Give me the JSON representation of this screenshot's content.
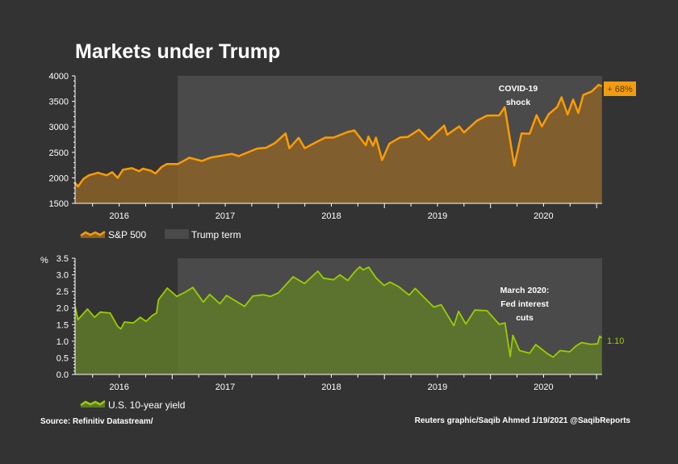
{
  "title": "Markets under Trump",
  "source": "Source: Refinitiv Datastream/",
  "credit": "Reuters graphic/Saqib Ahmed 1/19/2021 @SaqibReports",
  "colors": {
    "background": "#333333",
    "trump_term": "#4a4a4a",
    "sp500": "#ff9c00",
    "sp500_fill": "#8a6228",
    "yield": "#9acd00",
    "yield_fill": "#5f7a2a"
  },
  "chart_data": [
    {
      "type": "area",
      "series": [
        {
          "name": "S&P 500",
          "points": [
            [
              "2016-02-01",
              1900
            ],
            [
              "2016-02-11",
              1830
            ],
            [
              "2016-03-01",
              1980
            ],
            [
              "2016-03-20",
              2050
            ],
            [
              "2016-04-20",
              2100
            ],
            [
              "2016-05-20",
              2050
            ],
            [
              "2016-06-08",
              2110
            ],
            [
              "2016-06-27",
              2000
            ],
            [
              "2016-07-15",
              2160
            ],
            [
              "2016-08-15",
              2190
            ],
            [
              "2016-09-09",
              2130
            ],
            [
              "2016-09-22",
              2180
            ],
            [
              "2016-10-20",
              2140
            ],
            [
              "2016-11-04",
              2085
            ],
            [
              "2016-11-25",
              2210
            ],
            [
              "2016-12-13",
              2270
            ],
            [
              "2017-01-20",
              2270
            ],
            [
              "2017-02-15",
              2350
            ],
            [
              "2017-03-01",
              2395
            ],
            [
              "2017-04-13",
              2330
            ],
            [
              "2017-05-15",
              2400
            ],
            [
              "2017-06-15",
              2430
            ],
            [
              "2017-07-25",
              2470
            ],
            [
              "2017-08-18",
              2425
            ],
            [
              "2017-09-20",
              2505
            ],
            [
              "2017-10-20",
              2575
            ],
            [
              "2017-11-20",
              2590
            ],
            [
              "2017-12-20",
              2680
            ],
            [
              "2018-01-26",
              2872
            ],
            [
              "2018-02-08",
              2580
            ],
            [
              "2018-03-12",
              2785
            ],
            [
              "2018-04-02",
              2580
            ],
            [
              "2018-05-15",
              2710
            ],
            [
              "2018-06-12",
              2790
            ],
            [
              "2018-07-10",
              2790
            ],
            [
              "2018-08-28",
              2900
            ],
            [
              "2018-09-20",
              2930
            ],
            [
              "2018-10-29",
              2640
            ],
            [
              "2018-11-07",
              2810
            ],
            [
              "2018-11-23",
              2630
            ],
            [
              "2018-12-03",
              2790
            ],
            [
              "2018-12-24",
              2350
            ],
            [
              "2019-01-18",
              2670
            ],
            [
              "2019-02-25",
              2795
            ],
            [
              "2019-03-22",
              2800
            ],
            [
              "2019-04-30",
              2945
            ],
            [
              "2019-06-03",
              2745
            ],
            [
              "2019-07-26",
              3025
            ],
            [
              "2019-08-05",
              2845
            ],
            [
              "2019-09-15",
              3010
            ],
            [
              "2019-10-02",
              2890
            ],
            [
              "2019-11-15",
              3120
            ],
            [
              "2019-12-20",
              3220
            ],
            [
              "2020-01-31",
              3225
            ],
            [
              "2020-02-19",
              3386
            ],
            [
              "2020-03-23",
              2237
            ],
            [
              "2020-04-17",
              2870
            ],
            [
              "2020-05-15",
              2865
            ],
            [
              "2020-06-08",
              3230
            ],
            [
              "2020-06-26",
              3010
            ],
            [
              "2020-07-20",
              3250
            ],
            [
              "2020-08-18",
              3390
            ],
            [
              "2020-09-02",
              3580
            ],
            [
              "2020-09-23",
              3240
            ],
            [
              "2020-10-12",
              3535
            ],
            [
              "2020-10-30",
              3270
            ],
            [
              "2020-11-16",
              3625
            ],
            [
              "2020-12-15",
              3695
            ],
            [
              "2021-01-08",
              3824
            ],
            [
              "2021-01-19",
              3798
            ]
          ]
        }
      ],
      "ylim": [
        1500,
        4000
      ],
      "yticks": [
        1500,
        2000,
        2500,
        3000,
        3500,
        4000
      ],
      "xlim": [
        "2016-02-01",
        "2021-01-20"
      ],
      "xtick_labels": [
        "2016",
        "2017",
        "2018",
        "2019",
        "2020"
      ],
      "shaded_range": {
        "name": "Trump term",
        "from": "2017-01-20",
        "to": "2021-01-20"
      },
      "annotations": {
        "covid_line1": "COVID-19",
        "covid_line2": "shock",
        "end_label": "+ 68%"
      },
      "legend": {
        "placement": "bottom-left",
        "items": [
          "S&P 500",
          "Trump term"
        ]
      }
    },
    {
      "type": "area",
      "ylabel": "%",
      "series": [
        {
          "name": "U.S. 10-year yield",
          "points": [
            [
              "2016-02-01",
              2.05
            ],
            [
              "2016-02-11",
              1.65
            ],
            [
              "2016-03-15",
              1.97
            ],
            [
              "2016-04-08",
              1.72
            ],
            [
              "2016-04-28",
              1.88
            ],
            [
              "2016-06-01",
              1.85
            ],
            [
              "2016-06-27",
              1.45
            ],
            [
              "2016-07-08",
              1.37
            ],
            [
              "2016-07-20",
              1.58
            ],
            [
              "2016-08-20",
              1.55
            ],
            [
              "2016-09-13",
              1.72
            ],
            [
              "2016-10-03",
              1.6
            ],
            [
              "2016-10-25",
              1.78
            ],
            [
              "2016-11-08",
              1.85
            ],
            [
              "2016-11-15",
              2.25
            ],
            [
              "2016-12-15",
              2.6
            ],
            [
              "2017-01-17",
              2.35
            ],
            [
              "2017-02-15",
              2.48
            ],
            [
              "2017-03-13",
              2.62
            ],
            [
              "2017-04-18",
              2.18
            ],
            [
              "2017-05-10",
              2.41
            ],
            [
              "2017-06-14",
              2.13
            ],
            [
              "2017-07-07",
              2.38
            ],
            [
              "2017-09-07",
              2.05
            ],
            [
              "2017-10-05",
              2.36
            ],
            [
              "2017-11-10",
              2.4
            ],
            [
              "2017-12-05",
              2.35
            ],
            [
              "2018-01-02",
              2.46
            ],
            [
              "2018-02-21",
              2.94
            ],
            [
              "2018-04-01",
              2.74
            ],
            [
              "2018-05-17",
              3.11
            ],
            [
              "2018-06-05",
              2.9
            ],
            [
              "2018-07-10",
              2.85
            ],
            [
              "2018-08-01",
              3.0
            ],
            [
              "2018-08-28",
              2.83
            ],
            [
              "2018-09-20",
              3.08
            ],
            [
              "2018-10-08",
              3.24
            ],
            [
              "2018-10-20",
              3.15
            ],
            [
              "2018-11-08",
              3.23
            ],
            [
              "2018-12-04",
              2.9
            ],
            [
              "2018-12-31",
              2.68
            ],
            [
              "2019-01-20",
              2.78
            ],
            [
              "2019-02-20",
              2.64
            ],
            [
              "2019-03-27",
              2.39
            ],
            [
              "2019-04-17",
              2.59
            ],
            [
              "2019-05-30",
              2.21
            ],
            [
              "2019-06-20",
              2.03
            ],
            [
              "2019-07-15",
              2.1
            ],
            [
              "2019-08-28",
              1.47
            ],
            [
              "2019-09-13",
              1.9
            ],
            [
              "2019-10-08",
              1.52
            ],
            [
              "2019-11-08",
              1.94
            ],
            [
              "2019-12-20",
              1.92
            ],
            [
              "2020-01-31",
              1.51
            ],
            [
              "2020-02-20",
              1.55
            ],
            [
              "2020-03-09",
              0.54
            ],
            [
              "2020-03-18",
              1.18
            ],
            [
              "2020-04-10",
              0.72
            ],
            [
              "2020-05-15",
              0.64
            ],
            [
              "2020-06-05",
              0.9
            ],
            [
              "2020-07-15",
              0.63
            ],
            [
              "2020-08-04",
              0.52
            ],
            [
              "2020-08-28",
              0.72
            ],
            [
              "2020-09-30",
              0.68
            ],
            [
              "2020-10-22",
              0.86
            ],
            [
              "2020-11-10",
              0.96
            ],
            [
              "2020-12-10",
              0.91
            ],
            [
              "2021-01-04",
              0.92
            ],
            [
              "2021-01-12",
              1.15
            ],
            [
              "2021-01-19",
              1.1
            ]
          ]
        }
      ],
      "ylim": [
        0,
        3.5
      ],
      "yticks": [
        "0.0",
        "0.5",
        "1.0",
        "1.5",
        "2.0",
        "2.5",
        "3.0",
        "3.5"
      ],
      "xlim": [
        "2016-02-01",
        "2021-01-20"
      ],
      "xtick_labels": [
        "2016",
        "2017",
        "2018",
        "2019",
        "2020"
      ],
      "shaded_range": {
        "name": "Trump term",
        "from": "2017-01-20",
        "to": "2021-01-20"
      },
      "annotations": {
        "fed_line1": "March 2020:",
        "fed_line2": "Fed interest",
        "fed_line3": "cuts",
        "end_label": "1.10"
      },
      "legend": {
        "placement": "bottom-left",
        "items": [
          "U.S. 10-year yield"
        ]
      }
    }
  ]
}
